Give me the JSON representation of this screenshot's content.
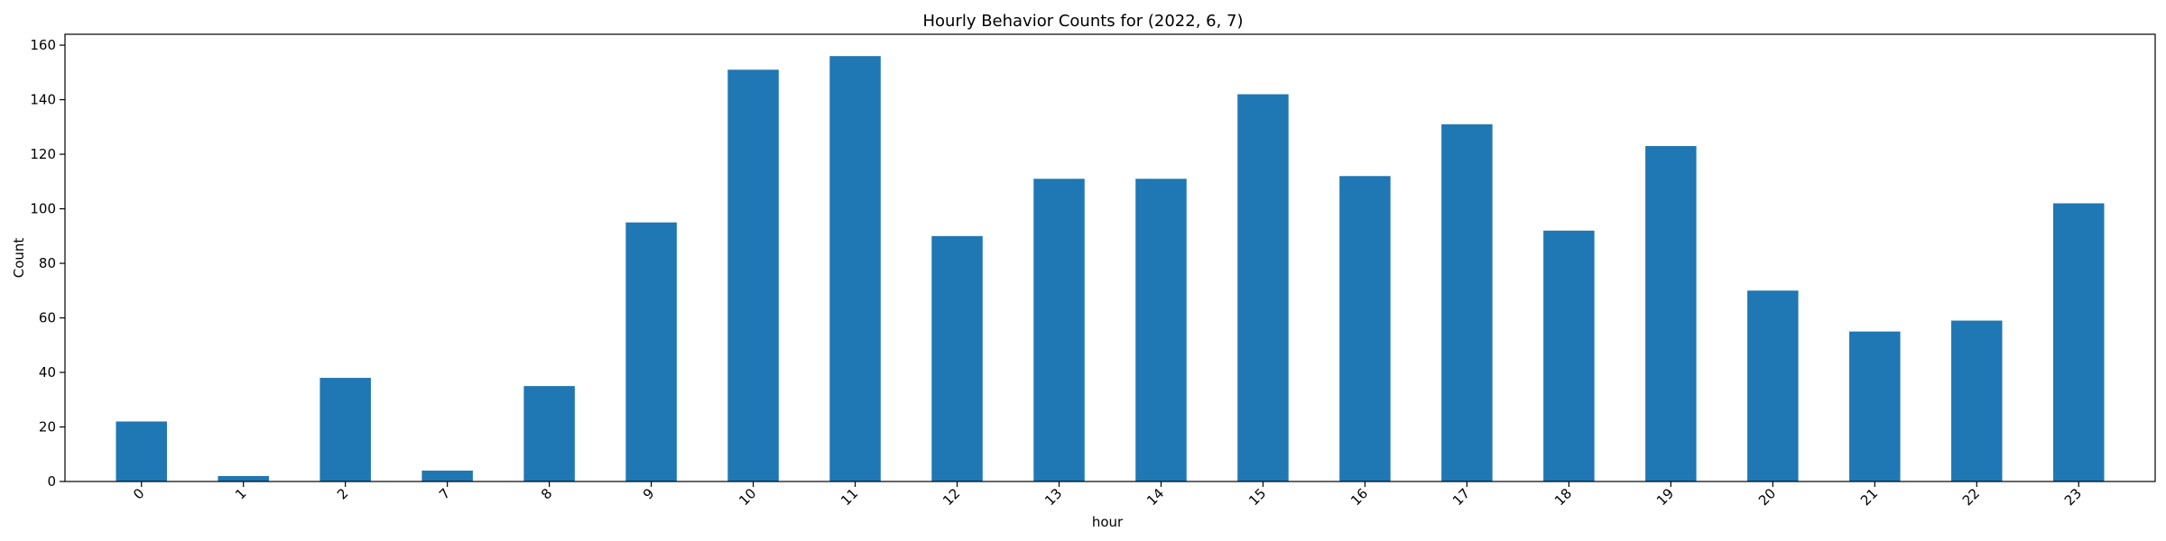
{
  "chart_data": {
    "type": "bar",
    "title": "Hourly Behavior Counts for (2022, 6, 7)",
    "xlabel": "hour",
    "ylabel": "Count",
    "categories": [
      "0",
      "1",
      "2",
      "7",
      "8",
      "9",
      "10",
      "11",
      "12",
      "13",
      "14",
      "15",
      "16",
      "17",
      "18",
      "19",
      "20",
      "21",
      "22",
      "23"
    ],
    "values": [
      22,
      2,
      38,
      4,
      35,
      95,
      151,
      156,
      90,
      111,
      111,
      142,
      112,
      131,
      92,
      123,
      70,
      55,
      59,
      102
    ],
    "ylim": [
      0,
      164
    ],
    "yticks": [
      0,
      20,
      40,
      60,
      80,
      100,
      120,
      140,
      160
    ],
    "bar_color": "#1f77b4",
    "grid": false,
    "xtick_rotation": 45
  }
}
